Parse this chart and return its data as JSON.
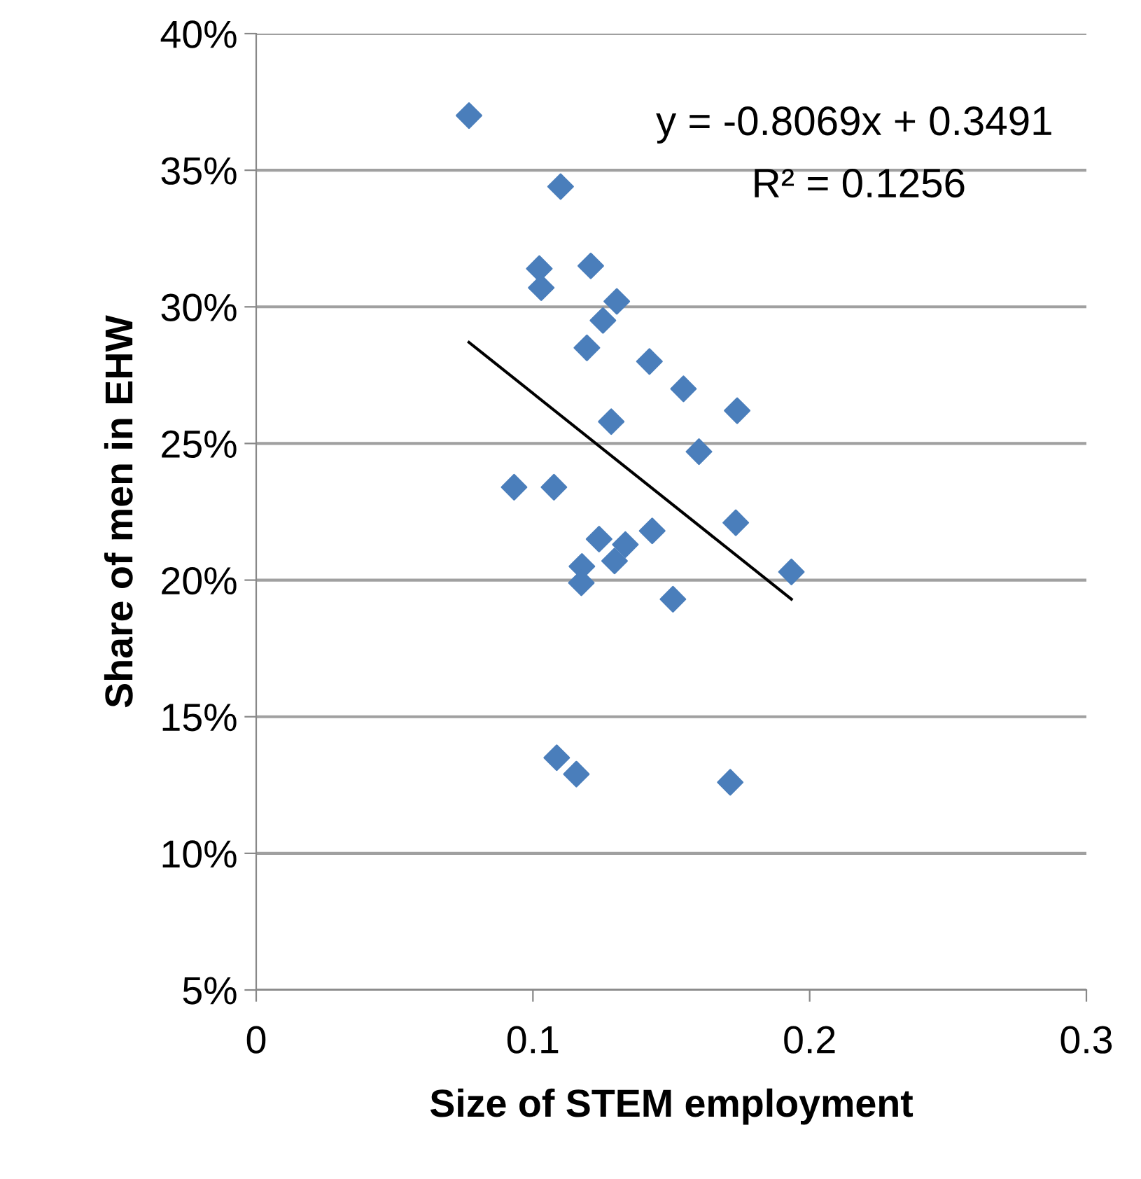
{
  "chart_data": {
    "type": "scatter",
    "xlabel": "Size of STEM employment",
    "ylabel": "Share of men in EHW",
    "xlim": [
      0,
      0.3
    ],
    "xticks": [
      0,
      0.1,
      0.2,
      0.3
    ],
    "ylim": [
      5,
      40
    ],
    "yticks": [
      {
        "value": 5,
        "label": "5%"
      },
      {
        "value": 10,
        "label": "10%"
      },
      {
        "value": 15,
        "label": "15%"
      },
      {
        "value": 20,
        "label": "20%"
      },
      {
        "value": 25,
        "label": "25%"
      },
      {
        "value": 30,
        "label": "30%"
      },
      {
        "value": 35,
        "label": "35%"
      },
      {
        "value": 40,
        "label": "40%"
      }
    ],
    "grid": "y",
    "legend": false,
    "series": [
      {
        "marker": "diamond",
        "color": "#4a7ebb",
        "x": [
          0.0769,
          0.11,
          0.1023,
          0.103,
          0.1209,
          0.1303,
          0.1253,
          0.1195,
          0.1421,
          0.1544,
          0.1738,
          0.1283,
          0.16,
          0.0932,
          0.1076,
          0.1733,
          0.1431,
          0.1239,
          0.1334,
          0.1295,
          0.1177,
          0.1175,
          0.1934,
          0.1506,
          0.1086,
          0.1157,
          0.1713
        ],
        "values": [
          37.0,
          34.4,
          31.4,
          30.7,
          31.5,
          30.2,
          29.5,
          28.5,
          28.0,
          27.0,
          26.2,
          25.8,
          24.7,
          23.4,
          23.4,
          22.1,
          21.8,
          21.5,
          21.3,
          20.7,
          20.5,
          19.9,
          20.3,
          19.3,
          13.5,
          12.9,
          12.6
        ]
      },
      {
        "type": "line",
        "marker": "none",
        "line_style": "solid",
        "color": "#000000",
        "x": [
          0.0769,
          0.1934
        ],
        "values": [
          28.7,
          19.3
        ]
      }
    ],
    "annotations": [
      "y = -0.8069x + 0.3491",
      "R² = 0.1256"
    ]
  }
}
